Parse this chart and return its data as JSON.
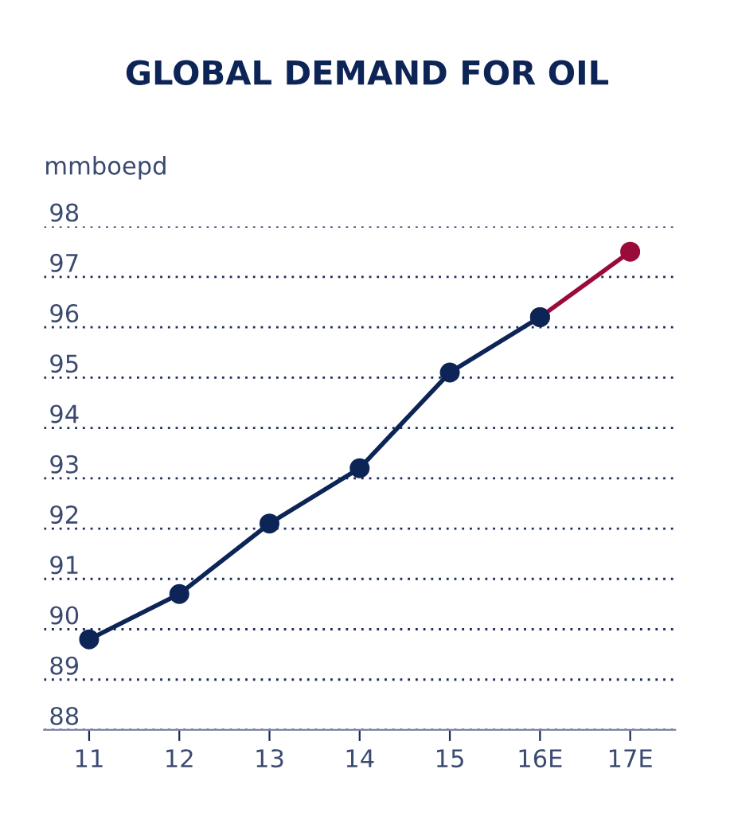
{
  "chart_data": {
    "type": "line",
    "title": "GLOBAL DEMAND FOR OIL",
    "ylabel": "mmboepd",
    "categories": [
      "11",
      "12",
      "13",
      "14",
      "15",
      "16E",
      "17E"
    ],
    "series": [
      {
        "color": "#0d2556",
        "values": [
          89.8,
          90.7,
          92.1,
          93.2,
          95.1,
          96.2,
          null
        ]
      },
      {
        "color": "#9b0b3a",
        "values": [
          null,
          null,
          null,
          null,
          null,
          96.2,
          97.5
        ]
      }
    ],
    "ylim": [
      88,
      98
    ],
    "yticks": [
      88,
      89,
      90,
      91,
      92,
      93,
      94,
      95,
      96,
      97,
      98
    ],
    "grid": "y",
    "marker": "circle",
    "line_style": "solid"
  }
}
